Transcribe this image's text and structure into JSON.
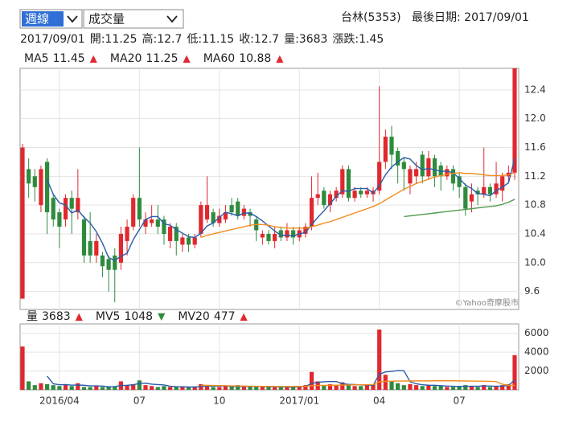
{
  "controls": {
    "period": "週線",
    "indicator": "成交量"
  },
  "header": {
    "stock": "台林(5353)",
    "last_date": "最後日期: 2017/09/01"
  },
  "info": [
    "2017/09/01",
    "開:11.25",
    "高:12.7",
    "低:11.15",
    "收:12.7",
    "量:3683",
    "漲跌:1.45"
  ],
  "watermark": "©Yahoo奇摩股市",
  "chart_data": [
    {
      "type": "candlestick",
      "up_color": "#e0282e",
      "down_color": "#2e8b3e",
      "ylim": [
        9.35,
        12.7
      ],
      "yticks": [
        9.6,
        {
          "value": 10,
          "label": "10.0"
        },
        10.4,
        10.8,
        11.2,
        11.6,
        {
          "value": 12,
          "label": "12.0"
        },
        12.4
      ],
      "grid": true,
      "open": [
        9.5,
        11.3,
        11.2,
        10.8,
        11.4,
        10.9,
        10.7,
        10.6,
        10.9,
        10.7,
        10.6,
        10.3,
        10.1,
        10.1,
        10.05,
        10.1,
        10.0,
        10.3,
        10.5,
        10.9,
        10.5,
        10.55,
        10.6,
        10.6,
        10.3,
        10.5,
        10.25,
        10.35,
        10.25,
        10.4,
        10.6,
        10.7,
        10.55,
        10.6,
        10.8,
        10.85,
        10.65,
        10.7,
        10.6,
        10.35,
        10.4,
        10.3,
        10.45,
        10.35,
        10.45,
        10.35,
        10.4,
        10.5,
        10.9,
        11.0,
        10.8,
        10.9,
        10.95,
        11.3,
        10.9,
        11.0,
        10.95,
        10.95,
        11.0,
        11.4,
        11.75,
        11.55,
        11.4,
        11.1,
        11.2,
        11.5,
        11.2,
        11.45,
        11.35,
        11.2,
        11.3,
        11.2,
        11.05,
        10.85,
        11.0,
        10.95,
        11.05,
        10.95,
        11.0,
        11.2,
        11.25
      ],
      "high": [
        11.65,
        11.45,
        11.3,
        11.35,
        11.45,
        10.95,
        10.75,
        10.95,
        11.0,
        11.3,
        10.65,
        10.7,
        10.4,
        10.15,
        10.1,
        10.2,
        10.5,
        10.6,
        10.95,
        11.6,
        10.7,
        10.8,
        10.8,
        10.65,
        10.55,
        10.55,
        10.4,
        10.4,
        10.4,
        10.85,
        11.2,
        10.75,
        10.75,
        10.8,
        10.9,
        10.9,
        10.8,
        10.75,
        10.65,
        10.45,
        10.45,
        10.5,
        10.5,
        10.55,
        10.5,
        10.5,
        10.55,
        11.2,
        11.25,
        11.05,
        11.0,
        11.05,
        11.35,
        11.35,
        11.05,
        11.05,
        11.05,
        11.05,
        12.45,
        11.85,
        11.9,
        11.6,
        11.45,
        11.35,
        11.4,
        11.55,
        11.55,
        11.5,
        11.4,
        11.35,
        11.35,
        11.25,
        11.1,
        11.1,
        11.05,
        11.6,
        11.1,
        11.4,
        11.25,
        11.35,
        12.7
      ],
      "low": [
        9.5,
        10.9,
        10.85,
        10.7,
        10.4,
        10.5,
        10.2,
        10.5,
        10.4,
        10.6,
        10.0,
        10.0,
        10.0,
        9.8,
        9.6,
        9.45,
        9.9,
        10.1,
        10.45,
        10.5,
        10.4,
        10.5,
        10.4,
        10.25,
        10.2,
        10.1,
        10.15,
        10.15,
        10.2,
        10.35,
        10.55,
        10.5,
        10.5,
        10.55,
        10.65,
        10.6,
        10.6,
        10.5,
        10.3,
        10.25,
        10.25,
        10.2,
        10.3,
        10.3,
        10.25,
        10.3,
        10.35,
        10.45,
        10.8,
        10.75,
        10.7,
        10.85,
        10.9,
        10.85,
        10.85,
        10.9,
        10.9,
        10.85,
        10.95,
        11.3,
        11.3,
        11.1,
        11.0,
        10.95,
        11.1,
        11.1,
        11.15,
        11.05,
        11.0,
        11.15,
        11.0,
        10.9,
        10.65,
        10.7,
        10.8,
        10.9,
        10.85,
        10.9,
        10.85,
        11.1,
        11.15
      ],
      "close": [
        11.6,
        11.1,
        11.05,
        11.3,
        10.7,
        10.6,
        10.5,
        10.9,
        10.75,
        10.9,
        10.1,
        10.1,
        10.3,
        9.95,
        9.9,
        9.9,
        10.4,
        10.5,
        10.9,
        10.6,
        10.6,
        10.6,
        10.5,
        10.4,
        10.5,
        10.3,
        10.35,
        10.25,
        10.35,
        10.8,
        10.8,
        10.55,
        10.65,
        10.7,
        10.7,
        10.65,
        10.75,
        10.65,
        10.45,
        10.4,
        10.3,
        10.4,
        10.35,
        10.45,
        10.35,
        10.45,
        10.5,
        10.9,
        10.95,
        10.8,
        10.95,
        11.0,
        11.3,
        10.9,
        11.0,
        10.95,
        11.0,
        11.0,
        11.4,
        11.75,
        11.5,
        11.35,
        11.3,
        11.3,
        11.3,
        11.2,
        11.45,
        11.2,
        11.2,
        11.3,
        11.1,
        11.05,
        10.75,
        10.95,
        10.95,
        11.05,
        10.95,
        11.1,
        11.2,
        11.25,
        12.7
      ],
      "series": [
        {
          "name": "MA5",
          "color": "#2a5caa",
          "trend": "▲",
          "values": [
            null,
            null,
            null,
            null,
            11.15,
            10.95,
            10.83,
            10.8,
            10.69,
            10.73,
            10.63,
            10.55,
            10.43,
            10.27,
            10.07,
            10.03,
            10.09,
            10.13,
            10.32,
            10.46,
            10.6,
            10.64,
            10.64,
            10.54,
            10.52,
            10.46,
            10.41,
            10.36,
            10.35,
            10.41,
            10.51,
            10.55,
            10.63,
            10.7,
            10.68,
            10.65,
            10.69,
            10.69,
            10.64,
            10.58,
            10.51,
            10.44,
            10.38,
            10.38,
            10.37,
            10.4,
            10.42,
            10.53,
            10.63,
            10.72,
            10.82,
            10.92,
            11.0,
            10.99,
            11.03,
            11.03,
            11.03,
            10.97,
            11.07,
            11.22,
            11.33,
            11.4,
            11.46,
            11.44,
            11.35,
            11.29,
            11.31,
            11.29,
            11.27,
            11.27,
            11.25,
            11.17,
            11.08,
            11.03,
            10.96,
            10.95,
            10.93,
            11.0,
            11.05,
            11.11,
            11.45
          ]
        },
        {
          "name": "MA20",
          "color": "#f28e1f",
          "trend": "▲",
          "values": [
            null,
            null,
            null,
            null,
            null,
            null,
            null,
            null,
            null,
            null,
            null,
            null,
            null,
            null,
            null,
            null,
            null,
            null,
            null,
            null,
            null,
            null,
            null,
            null,
            null,
            null,
            null,
            null,
            null,
            10.35,
            10.38,
            10.4,
            10.42,
            10.44,
            10.46,
            10.48,
            10.5,
            10.52,
            10.53,
            10.53,
            10.52,
            10.5,
            10.49,
            10.48,
            10.48,
            10.48,
            10.48,
            10.5,
            10.52,
            10.55,
            10.57,
            10.6,
            10.63,
            10.66,
            10.69,
            10.72,
            10.75,
            10.78,
            10.82,
            10.87,
            10.92,
            10.97,
            11.02,
            11.06,
            11.1,
            11.13,
            11.16,
            11.19,
            11.21,
            11.23,
            11.24,
            11.25,
            11.24,
            11.24,
            11.23,
            11.22,
            11.21,
            11.21,
            11.21,
            11.22,
            11.25
          ]
        },
        {
          "name": "MA60",
          "color": "#4f9a4f",
          "trend": "▲",
          "values": [
            null,
            null,
            null,
            null,
            null,
            null,
            null,
            null,
            null,
            null,
            null,
            null,
            null,
            null,
            null,
            null,
            null,
            null,
            null,
            null,
            null,
            null,
            null,
            null,
            null,
            null,
            null,
            null,
            null,
            null,
            null,
            null,
            null,
            null,
            null,
            null,
            null,
            null,
            null,
            null,
            null,
            null,
            null,
            null,
            null,
            null,
            null,
            null,
            null,
            null,
            null,
            null,
            null,
            null,
            null,
            null,
            null,
            null,
            null,
            null,
            null,
            null,
            10.64,
            10.65,
            10.66,
            10.67,
            10.68,
            10.69,
            10.7,
            10.71,
            10.72,
            10.73,
            10.74,
            10.75,
            10.76,
            10.77,
            10.78,
            10.79,
            10.81,
            10.84,
            10.88
          ]
        }
      ]
    },
    {
      "type": "bar",
      "name": "量",
      "trend": "▲",
      "ylim": [
        0,
        7000
      ],
      "yticks": [
        2000,
        4000,
        6000
      ],
      "grid": true,
      "categories": [
        null,
        null,
        null,
        null,
        null,
        null,
        "2016/04",
        null,
        null,
        null,
        null,
        null,
        null,
        null,
        null,
        null,
        null,
        null,
        null,
        "07",
        null,
        null,
        null,
        null,
        null,
        null,
        null,
        null,
        null,
        null,
        null,
        null,
        "10",
        null,
        null,
        null,
        null,
        null,
        null,
        null,
        null,
        null,
        null,
        null,
        null,
        "2017/01",
        null,
        null,
        null,
        null,
        null,
        null,
        null,
        null,
        null,
        null,
        null,
        null,
        "04",
        null,
        null,
        null,
        null,
        null,
        null,
        null,
        null,
        null,
        null,
        null,
        null,
        "07",
        null,
        null,
        null,
        null,
        null,
        null,
        null,
        null,
        null
      ],
      "values": [
        4600,
        900,
        500,
        700,
        600,
        500,
        400,
        600,
        400,
        700,
        300,
        300,
        400,
        300,
        300,
        400,
        900,
        500,
        600,
        1000,
        500,
        400,
        300,
        400,
        300,
        300,
        300,
        300,
        300,
        600,
        500,
        300,
        300,
        400,
        300,
        500,
        300,
        300,
        400,
        300,
        300,
        300,
        300,
        300,
        300,
        400,
        500,
        1900,
        900,
        500,
        600,
        500,
        800,
        500,
        400,
        400,
        500,
        600,
        6400,
        1600,
        900,
        700,
        500,
        600,
        500,
        400,
        500,
        400,
        400,
        300,
        300,
        400,
        500,
        400,
        300,
        500,
        300,
        400,
        500,
        600,
        3683
      ],
      "series": [
        {
          "name": "MV5",
          "color": "#2a5caa",
          "trend": "▼",
          "values": [
            null,
            null,
            null,
            null,
            1460,
            640,
            540,
            560,
            500,
            520,
            480,
            420,
            420,
            400,
            320,
            340,
            460,
            480,
            540,
            680,
            700,
            600,
            560,
            520,
            380,
            340,
            320,
            300,
            300,
            360,
            400,
            400,
            400,
            420,
            360,
            360,
            360,
            360,
            360,
            360,
            320,
            320,
            320,
            300,
            300,
            320,
            360,
            680,
            800,
            860,
            880,
            880,
            660,
            580,
            560,
            520,
            520,
            480,
            1660,
            1900,
            1960,
            2040,
            2020,
            860,
            640,
            540,
            500,
            480,
            440,
            400,
            380,
            360,
            380,
            380,
            380,
            420,
            400,
            380,
            400,
            460,
            1048
          ]
        },
        {
          "name": "MV20",
          "color": "#f28e1f",
          "trend": "▲",
          "values": [
            null,
            null,
            null,
            null,
            null,
            null,
            null,
            null,
            null,
            null,
            null,
            null,
            null,
            null,
            null,
            null,
            null,
            null,
            null,
            null,
            null,
            null,
            null,
            null,
            null,
            null,
            null,
            null,
            null,
            480,
            470,
            460,
            450,
            440,
            420,
            410,
            400,
            390,
            380,
            370,
            370,
            360,
            360,
            360,
            360,
            370,
            370,
            440,
            460,
            470,
            480,
            490,
            510,
            520,
            530,
            540,
            550,
            560,
            860,
            900,
            920,
            930,
            940,
            950,
            950,
            950,
            950,
            960,
            960,
            960,
            960,
            950,
            940,
            930,
            920,
            910,
            900,
            880,
            600,
            480,
            477
          ]
        }
      ]
    }
  ]
}
